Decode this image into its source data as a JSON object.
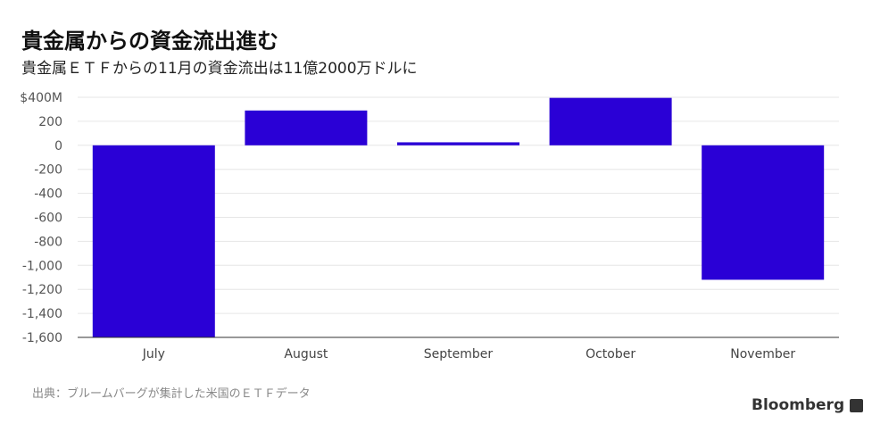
{
  "title": "貴金属からの資金流出進む",
  "subtitle": "貴金属ＥＴＦからの11月の資金流出は11億2000万ドルに",
  "source": "出典：ブルームバーグが集計した米国のＥＴＦデータ",
  "logo": "Bloomberg",
  "chart_data": {
    "type": "bar",
    "categories": [
      "July",
      "August",
      "September",
      "October",
      "November"
    ],
    "values": [
      -1600,
      290,
      25,
      395,
      -1120
    ],
    "ylim": [
      -1600,
      400
    ],
    "yticks": [
      400,
      200,
      0,
      -200,
      -400,
      -600,
      -800,
      -1000,
      -1200,
      -1400,
      -1600
    ],
    "ytick_labels": [
      "$400M",
      "200",
      "0",
      "-200",
      "-400",
      "-600",
      "-800",
      "-1,000",
      "-1,200",
      "-1,400",
      "-1,600"
    ],
    "grid": true,
    "color": "#2a00d6"
  }
}
